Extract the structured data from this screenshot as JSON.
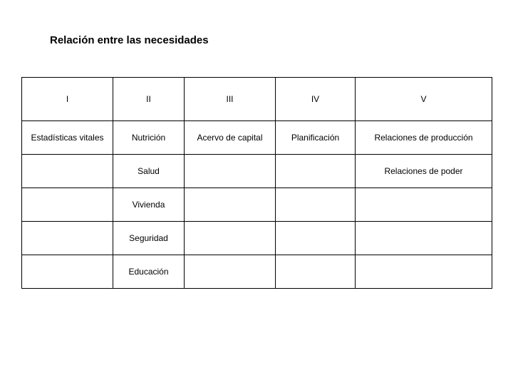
{
  "title": "Relación entre las necesidades",
  "table": {
    "headers": [
      "I",
      "II",
      "III",
      "IV",
      "V"
    ],
    "rows": [
      [
        "Estadísticas vitales",
        "Nutrición",
        "Acervo de capital",
        "Planificación",
        "Relaciones de producción"
      ],
      [
        "",
        "Salud",
        "",
        "",
        "Relaciones de poder"
      ],
      [
        "",
        "Vivienda",
        "",
        "",
        ""
      ],
      [
        "",
        "Seguridad",
        "",
        "",
        ""
      ],
      [
        "",
        "Educación",
        "",
        "",
        ""
      ]
    ]
  }
}
